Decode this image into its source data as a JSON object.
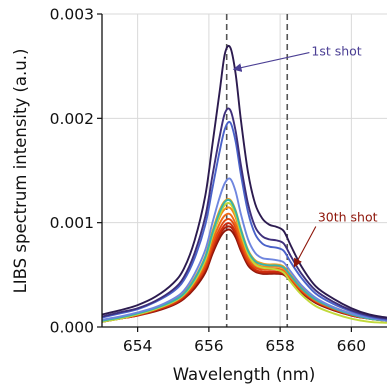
{
  "chart_data": {
    "type": "line",
    "title": "",
    "xlabel": "Wavelength (nm)",
    "ylabel": "LIBS spectrum intensity (a.u.)",
    "xlim": [
      653,
      661
    ],
    "ylim": [
      0,
      0.003
    ],
    "xticks": [
      654,
      656,
      658,
      660
    ],
    "xtick_labels": [
      "654",
      "656",
      "658",
      "660"
    ],
    "yticks": [
      0,
      0.001,
      0.002,
      0.003
    ],
    "ytick_labels": [
      "0.000",
      "0.001",
      "0.002",
      "0.003"
    ],
    "grid": true,
    "reference_lines": [
      {
        "x": 656.5,
        "style": "dashed",
        "color": "#555555"
      },
      {
        "x": 658.2,
        "style": "dashed",
        "color": "#555555"
      }
    ],
    "x": [
      653.0,
      653.5,
      654.0,
      654.5,
      655.0,
      655.3,
      655.6,
      655.9,
      656.1,
      656.3,
      656.45,
      656.6,
      656.75,
      656.9,
      657.1,
      657.3,
      657.5,
      657.7,
      657.9,
      658.1,
      658.3,
      658.6,
      659.0,
      659.5,
      660.0,
      660.5,
      661.0
    ],
    "series": [
      {
        "color": "#2c1b4f",
        "values": [
          0.00012,
          0.00016,
          0.00021,
          0.00029,
          0.00042,
          0.00056,
          0.00083,
          0.00126,
          0.00175,
          0.00225,
          0.00262,
          0.00268,
          0.00243,
          0.00198,
          0.00148,
          0.00118,
          0.00104,
          0.00098,
          0.00096,
          0.00092,
          0.00078,
          0.00058,
          0.00039,
          0.00027,
          0.00018,
          0.00012,
          9e-05
        ]
      },
      {
        "color": "#3e2f7a",
        "values": [
          0.0001,
          0.00014,
          0.00018,
          0.00025,
          0.00036,
          0.00048,
          0.00071,
          0.00106,
          0.00145,
          0.00182,
          0.00205,
          0.00208,
          0.00188,
          0.00155,
          0.00118,
          0.00096,
          0.00087,
          0.00084,
          0.00083,
          0.0008,
          0.00068,
          0.00051,
          0.00035,
          0.00024,
          0.00016,
          0.00011,
          8e-05
        ]
      },
      {
        "color": "#4a62c9",
        "values": [
          9e-05,
          0.00013,
          0.00017,
          0.00024,
          0.00034,
          0.00045,
          0.00066,
          0.00098,
          0.00133,
          0.00168,
          0.0019,
          0.00196,
          0.00178,
          0.00146,
          0.0011,
          0.00089,
          0.0008,
          0.00077,
          0.00076,
          0.00073,
          0.00062,
          0.00047,
          0.00032,
          0.00022,
          0.00015,
          0.0001,
          7e-05
        ]
      },
      {
        "color": "#6f86df",
        "values": [
          7e-05,
          0.0001,
          0.00014,
          0.00019,
          0.00027,
          0.00035,
          0.00051,
          0.00074,
          0.001,
          0.00124,
          0.00138,
          0.00142,
          0.0013,
          0.00108,
          0.00084,
          0.00071,
          0.00066,
          0.00065,
          0.00064,
          0.00062,
          0.00053,
          0.0004,
          0.00028,
          0.00019,
          0.00013,
          9e-05,
          6e-05
        ]
      },
      {
        "color": "#36b3a8",
        "values": [
          6e-05,
          9e-05,
          0.00013,
          0.00018,
          0.00025,
          0.00032,
          0.00046,
          0.00067,
          0.0009,
          0.0011,
          0.0012,
          0.00121,
          0.00111,
          0.00093,
          0.00073,
          0.00063,
          0.0006,
          0.00059,
          0.00059,
          0.00057,
          0.00049,
          0.00037,
          0.00026,
          0.00018,
          0.00012,
          8e-05,
          6e-05
        ]
      },
      {
        "color": "#c2d93a",
        "values": [
          5e-05,
          8e-05,
          0.00012,
          0.00017,
          0.00024,
          0.00031,
          0.00044,
          0.00064,
          0.00087,
          0.00107,
          0.00117,
          0.00118,
          0.00108,
          0.0009,
          0.0007,
          0.0006,
          0.00057,
          0.00056,
          0.00055,
          0.00052,
          0.00043,
          0.00031,
          0.0002,
          0.00013,
          8e-05,
          5e-05,
          4e-05
        ]
      },
      {
        "color": "#f4a11f",
        "values": [
          6e-05,
          9e-05,
          0.00013,
          0.00018,
          0.00026,
          0.00033,
          0.00047,
          0.00068,
          0.00092,
          0.00112,
          0.00121,
          0.00122,
          0.00112,
          0.00094,
          0.00074,
          0.00064,
          0.00061,
          0.0006,
          0.0006,
          0.00058,
          0.0005,
          0.00038,
          0.00027,
          0.00019,
          0.00013,
          9e-05,
          7e-05
        ]
      },
      {
        "color": "#f28a1a",
        "values": [
          6e-05,
          9e-05,
          0.00013,
          0.00018,
          0.00025,
          0.00032,
          0.00045,
          0.00065,
          0.00087,
          0.00105,
          0.00113,
          0.00114,
          0.00105,
          0.00088,
          0.0007,
          0.00061,
          0.00058,
          0.00058,
          0.00058,
          0.00056,
          0.00048,
          0.00037,
          0.00026,
          0.00018,
          0.00012,
          8e-05,
          6e-05
        ]
      },
      {
        "color": "#ef6a16",
        "values": [
          6e-05,
          9e-05,
          0.00012,
          0.00017,
          0.00024,
          0.00031,
          0.00043,
          0.00061,
          0.00082,
          0.00099,
          0.00107,
          0.00108,
          0.00099,
          0.00083,
          0.00067,
          0.00059,
          0.00056,
          0.00056,
          0.00056,
          0.00054,
          0.00047,
          0.00036,
          0.00025,
          0.00018,
          0.00012,
          8e-05,
          6e-05
        ]
      },
      {
        "color": "#e24a12",
        "values": [
          6e-05,
          8e-05,
          0.00012,
          0.00017,
          0.00023,
          0.0003,
          0.00041,
          0.00058,
          0.00078,
          0.00094,
          0.00102,
          0.00103,
          0.00095,
          0.0008,
          0.00064,
          0.00057,
          0.00055,
          0.00055,
          0.00055,
          0.00053,
          0.00046,
          0.00035,
          0.00025,
          0.00017,
          0.00012,
          8e-05,
          6e-05
        ]
      },
      {
        "color": "#cf2d0f",
        "values": [
          5e-05,
          8e-05,
          0.00011,
          0.00016,
          0.00022,
          0.00029,
          0.0004,
          0.00056,
          0.00075,
          0.0009,
          0.00098,
          0.00099,
          0.00091,
          0.00077,
          0.00062,
          0.00055,
          0.00053,
          0.00053,
          0.00053,
          0.00052,
          0.00045,
          0.00034,
          0.00024,
          0.00017,
          0.00011,
          8e-05,
          6e-05
        ]
      },
      {
        "color": "#b0210c",
        "values": [
          5e-05,
          8e-05,
          0.00011,
          0.00016,
          0.00022,
          0.00028,
          0.00039,
          0.00055,
          0.00073,
          0.00088,
          0.00095,
          0.00096,
          0.00089,
          0.00075,
          0.00061,
          0.00054,
          0.00052,
          0.00052,
          0.00052,
          0.00051,
          0.00044,
          0.00034,
          0.00024,
          0.00017,
          0.00011,
          8e-05,
          6e-05
        ]
      },
      {
        "color": "#8e160a",
        "values": [
          5e-05,
          8e-05,
          0.00011,
          0.00015,
          0.00021,
          0.00027,
          0.00037,
          0.00052,
          0.0007,
          0.00085,
          0.00092,
          0.00093,
          0.00086,
          0.00073,
          0.00059,
          0.00053,
          0.00051,
          0.00051,
          0.00051,
          0.0005,
          0.00044,
          0.00033,
          0.00023,
          0.00016,
          0.00011,
          8e-05,
          6e-05
        ]
      }
    ],
    "annotations": [
      {
        "text": "1st shot",
        "x": 660.0,
        "y": 0.00264,
        "arrow_to": [
          656.7,
          0.00247
        ],
        "color": "#4b3f94"
      },
      {
        "text": "30th shot",
        "x": 659.9,
        "y": 0.00105,
        "arrow_to": [
          658.4,
          0.00058
        ],
        "color": "#8e160a"
      }
    ]
  }
}
